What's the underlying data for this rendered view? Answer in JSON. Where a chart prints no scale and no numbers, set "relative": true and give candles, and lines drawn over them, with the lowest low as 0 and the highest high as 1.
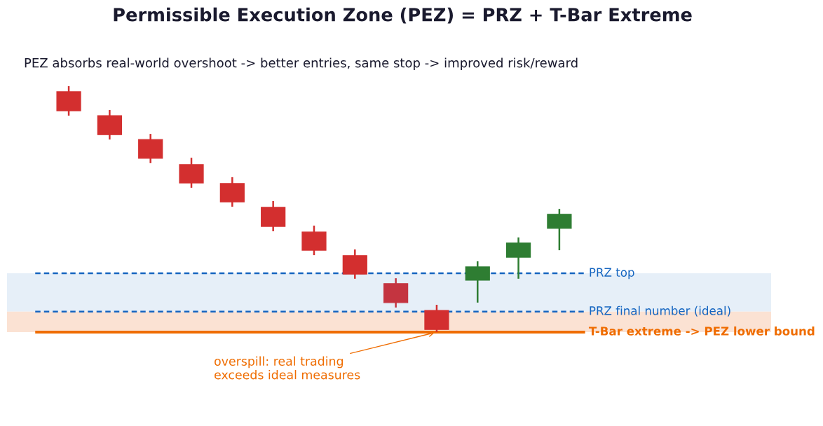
{
  "chart_data": {
    "type": "candlestick",
    "title": "Permissible Execution Zone (PEZ) = PRZ + T-Bar Extreme",
    "subtitle": "PEZ absorbs real-world overshoot -> better entries, same stop -> improved risk/reward",
    "relative": true,
    "categories": [
      null,
      null,
      null,
      null,
      null,
      null,
      null,
      null,
      null,
      null,
      null,
      null,
      null
    ],
    "ohlc": [
      [
        0.977,
        1,
        0.88,
        0.9
      ],
      [
        0.88,
        0.903,
        0.783,
        0.803
      ],
      [
        0.783,
        0.806,
        0.687,
        0.707
      ],
      [
        0.681,
        0.709,
        0.587,
        0.607
      ],
      [
        0.604,
        0.63,
        0.51,
        0.53
      ],
      [
        0.507,
        0.533,
        0.41,
        0.43
      ],
      [
        0.407,
        0.433,
        0.313,
        0.333
      ],
      [
        0.311,
        0.336,
        0.217,
        0.236
      ],
      [
        0.197,
        0.219,
        0.1,
        0.12
      ],
      [
        0.088,
        0.111,
        0,
        0.011
      ],
      [
        0.211,
        0.288,
        0.12,
        0.265
      ],
      [
        0.305,
        0.385,
        0.217,
        0.362
      ],
      [
        0.422,
        0.501,
        0.333,
        0.479
      ]
    ],
    "colors": [
      "#d32f2f",
      "#d32f2f",
      "#d32f2f",
      "#d32f2f",
      "#d32f2f",
      "#d32f2f",
      "#d32f2f",
      "#d32f2f",
      "#c43440",
      "#d32f2f",
      "#2e7d32",
      "#2e7d32",
      "#2e7d32"
    ],
    "bands": [
      {
        "axis": "y",
        "from": 0.083,
        "to": 0.239,
        "color": "#e6eff8"
      },
      {
        "axis": "y",
        "from": 0,
        "to": 0.083,
        "color": "#fbe2d3"
      }
    ],
    "ref_lines": [
      {
        "axis": "y",
        "value": 0.239,
        "label": "PRZ top",
        "color": "#1565c0",
        "line_style": "dashed"
      },
      {
        "axis": "y",
        "value": 0.083,
        "label": "PRZ final number (ideal)",
        "color": "#1565c0",
        "line_style": "dashed"
      },
      {
        "axis": "y",
        "value": 0,
        "label": "T-Bar extreme -> PEZ lower bound",
        "color": "#ef6c00",
        "line_style": "solid"
      }
    ],
    "annotations": [
      {
        "text": "overspill: real trading exceeds ideal measures",
        "y": 0
      }
    ]
  }
}
